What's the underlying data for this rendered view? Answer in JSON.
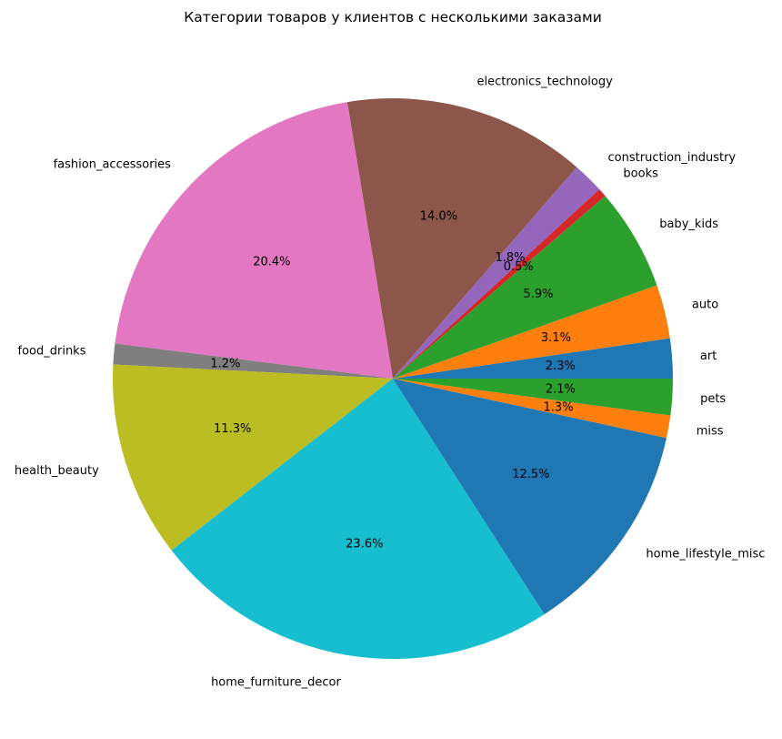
{
  "chart_data": {
    "type": "pie",
    "title": "Категории товаров у клиентов с несколькими заказами",
    "start_angle_deg": 0,
    "direction": "counterclockwise",
    "slices": [
      {
        "label": "art",
        "value": 2.3,
        "pct_label": "2.3%",
        "color": "#1f77b4"
      },
      {
        "label": "auto",
        "value": 3.1,
        "pct_label": "3.1%",
        "color": "#ff7f0e"
      },
      {
        "label": "baby_kids",
        "value": 5.9,
        "pct_label": "5.9%",
        "color": "#2ca02c"
      },
      {
        "label": "books",
        "value": 0.5,
        "pct_label": "0.5%",
        "color": "#d62728"
      },
      {
        "label": "construction_industry",
        "value": 1.8,
        "pct_label": "1.8%",
        "color": "#9467bd"
      },
      {
        "label": "electronics_technology",
        "value": 14.0,
        "pct_label": "14.0%",
        "color": "#8c564b"
      },
      {
        "label": "fashion_accessories",
        "value": 20.4,
        "pct_label": "20.4%",
        "color": "#e377c2"
      },
      {
        "label": "food_drinks",
        "value": 1.2,
        "pct_label": "1.2%",
        "color": "#7f7f7f"
      },
      {
        "label": "health_beauty",
        "value": 11.3,
        "pct_label": "11.3%",
        "color": "#bcbd22"
      },
      {
        "label": "home_furniture_decor",
        "value": 23.6,
        "pct_label": "23.6%",
        "color": "#17becf"
      },
      {
        "label": "home_lifestyle_misc",
        "value": 12.5,
        "pct_label": "12.5%",
        "color": "#1f77b4"
      },
      {
        "label": "miss",
        "value": 1.3,
        "pct_label": "1.3%",
        "color": "#ff7f0e"
      },
      {
        "label": "pets",
        "value": 2.1,
        "pct_label": "2.1%",
        "color": "#2ca02c"
      }
    ]
  }
}
